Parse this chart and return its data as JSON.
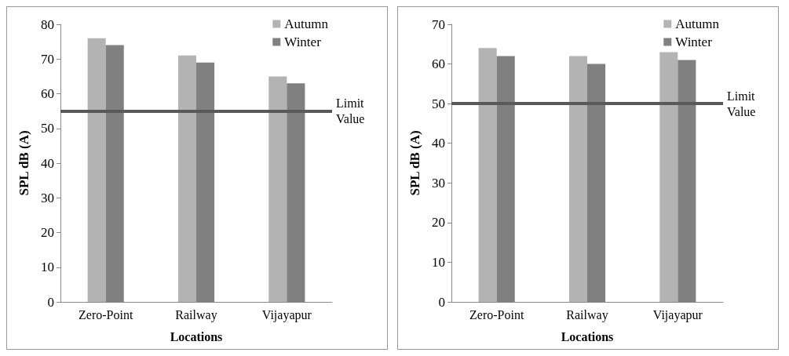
{
  "chart_data": [
    {
      "type": "bar",
      "xlabel": "Locations",
      "ylabel": "SPL dB (A)",
      "categories": [
        "Zero-Point",
        "Railway",
        "Vijayapur"
      ],
      "series": [
        {
          "name": "Autumn",
          "color": "#b3b3b3",
          "values": [
            76,
            71,
            65
          ]
        },
        {
          "name": "Winter",
          "color": "#808080",
          "values": [
            74,
            69,
            63
          ]
        }
      ],
      "ylim": [
        0,
        80
      ],
      "yticks": [
        0,
        10,
        20,
        30,
        40,
        50,
        60,
        70,
        80
      ],
      "grid": false,
      "legend": "top right",
      "ref_lines": [
        {
          "axis": "y",
          "value": 55,
          "label": "Limit Value",
          "color": "#595959"
        }
      ]
    },
    {
      "type": "bar",
      "xlabel": "Locations",
      "ylabel": "SPL dB (A)",
      "categories": [
        "Zero-Point",
        "Railway",
        "Vijayapur"
      ],
      "series": [
        {
          "name": "Autumn",
          "color": "#b3b3b3",
          "values": [
            64,
            62,
            63
          ]
        },
        {
          "name": "Winter",
          "color": "#808080",
          "values": [
            62,
            60,
            61
          ]
        }
      ],
      "ylim": [
        0,
        70
      ],
      "yticks": [
        0,
        10,
        20,
        30,
        40,
        50,
        60,
        70
      ],
      "grid": false,
      "legend": "top right",
      "ref_lines": [
        {
          "axis": "y",
          "value": 50,
          "label": "Limit Value",
          "color": "#595959"
        }
      ]
    }
  ]
}
